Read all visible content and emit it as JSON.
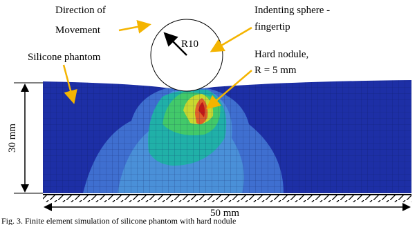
{
  "labels": {
    "direction": [
      "Direction of",
      "Movement"
    ],
    "sphere": [
      "Indenting sphere -",
      "fingertip"
    ],
    "radius": "R10",
    "phantom": "Silicone phantom",
    "nodule": [
      "Hard nodule,",
      "R = 5 mm"
    ],
    "height": "30 mm",
    "width": "50 mm"
  },
  "caption": "Fig. 3. Finite element simulation of silicone phantom with hard nodule"
}
